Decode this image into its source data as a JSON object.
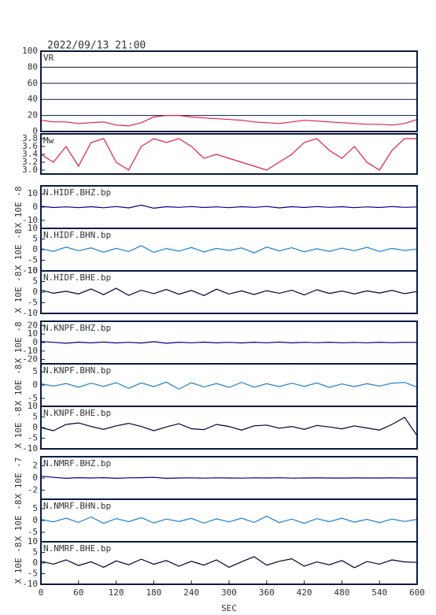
{
  "chart_data": [
    {
      "type": "line",
      "title": "2022/09/13 21:00",
      "grid": true,
      "xlim": [
        0,
        600
      ],
      "ylim": [
        0,
        100
      ],
      "yticks": [
        0,
        20,
        40,
        60,
        80,
        100
      ],
      "x": [
        0,
        20,
        40,
        60,
        80,
        100,
        120,
        140,
        160,
        180,
        200,
        220,
        240,
        260,
        280,
        300,
        320,
        340,
        360,
        380,
        400,
        420,
        440,
        460,
        480,
        500,
        520,
        540,
        560,
        580,
        600
      ],
      "series": [
        {
          "name": "VR",
          "color": "#e0204a",
          "values": [
            14,
            12,
            12,
            10,
            11,
            12,
            8,
            7,
            11,
            18,
            20,
            20,
            18,
            17,
            16,
            15,
            14,
            12,
            11,
            10,
            12,
            14,
            13,
            12,
            11,
            10,
            9,
            9,
            8,
            10,
            15
          ]
        }
      ]
    },
    {
      "type": "line",
      "grid": false,
      "xlim": [
        0,
        600
      ],
      "ylim": [
        2.9,
        3.92
      ],
      "yticks": [
        {
          "value": 3,
          "label": "3.0"
        },
        3.2,
        3.4,
        3.6,
        3.8
      ],
      "x": [
        0,
        20,
        40,
        60,
        80,
        100,
        120,
        140,
        160,
        180,
        200,
        220,
        240,
        260,
        280,
        300,
        320,
        340,
        360,
        380,
        400,
        420,
        440,
        460,
        480,
        500,
        520,
        540,
        560,
        580,
        600
      ],
      "series": [
        {
          "name": "Mw",
          "color": "#e0204a",
          "values": [
            3.4,
            3.2,
            3.6,
            3.1,
            3.7,
            3.8,
            3.2,
            3.0,
            3.6,
            3.8,
            3.7,
            3.8,
            3.6,
            3.3,
            3.4,
            3.3,
            3.2,
            3.1,
            3.0,
            3.2,
            3.4,
            3.7,
            3.8,
            3.5,
            3.3,
            3.6,
            3.2,
            3.0,
            3.5,
            3.8,
            3.8
          ]
        }
      ]
    },
    {
      "type": "line",
      "ylabel": "X 10E -8",
      "xlim": [
        0,
        600
      ],
      "ylim": [
        -16,
        16
      ],
      "yticks": [
        -10,
        0,
        10
      ],
      "x": [
        0,
        20,
        40,
        60,
        80,
        100,
        120,
        140,
        160,
        180,
        200,
        220,
        240,
        260,
        280,
        300,
        320,
        340,
        360,
        380,
        400,
        420,
        440,
        460,
        480,
        500,
        520,
        540,
        560,
        580,
        600
      ],
      "series": [
        {
          "name": "N.HIDF.BHZ.bp",
          "color": "#00008b",
          "values": [
            0.6,
            -0.3,
            0.2,
            -0.4,
            0.3,
            -0.5,
            0.4,
            -0.6,
            1.5,
            -0.8,
            0.3,
            -0.2,
            0.4,
            -0.3,
            0.2,
            -0.4,
            0.3,
            -0.2,
            0.5,
            -0.6,
            0.3,
            -0.3,
            0.4,
            -0.2,
            0.3,
            -0.4,
            0.2,
            -0.3,
            0.4,
            -0.2,
            0.1
          ]
        }
      ]
    },
    {
      "type": "line",
      "ylabel": "X 10E -8",
      "xlim": [
        0,
        600
      ],
      "ylim": [
        -10,
        10
      ],
      "yticks": [
        -10,
        -5,
        0,
        5,
        10
      ],
      "x": [
        0,
        20,
        40,
        60,
        80,
        100,
        120,
        140,
        160,
        180,
        200,
        220,
        240,
        260,
        280,
        300,
        320,
        340,
        360,
        380,
        400,
        420,
        440,
        460,
        480,
        500,
        520,
        540,
        560,
        580,
        600
      ],
      "series": [
        {
          "name": "N.HIDF.BHN.bp",
          "color": "#1e7fd0",
          "values": [
            0.5,
            -0.8,
            1.2,
            -0.5,
            0.8,
            -1.2,
            0.6,
            -0.9,
            1.8,
            -1.3,
            0.5,
            -0.7,
            1.0,
            -1.1,
            0.6,
            -0.4,
            0.8,
            -1.5,
            1.2,
            -0.6,
            0.9,
            -1.0,
            0.4,
            -0.8,
            0.7,
            -0.5,
            1.1,
            -0.9,
            0.6,
            -0.4,
            0.3
          ]
        }
      ]
    },
    {
      "type": "line",
      "ylabel": "X 10E -8",
      "xlim": [
        0,
        600
      ],
      "ylim": [
        -10,
        10
      ],
      "yticks": [
        -10,
        -5,
        0,
        5,
        10
      ],
      "x": [
        0,
        20,
        40,
        60,
        80,
        100,
        120,
        140,
        160,
        180,
        200,
        220,
        240,
        260,
        280,
        300,
        320,
        340,
        360,
        380,
        400,
        420,
        440,
        460,
        480,
        500,
        520,
        540,
        560,
        580,
        600
      ],
      "series": [
        {
          "name": "N.HIDF.BHE.bp",
          "color": "#000033",
          "values": [
            1.0,
            -0.5,
            0.4,
            -0.8,
            1.5,
            -1.2,
            1.8,
            -1.5,
            0.9,
            -0.7,
            1.3,
            -1.0,
            0.8,
            -1.6,
            1.4,
            -0.9,
            0.6,
            -1.1,
            0.7,
            -0.5,
            0.9,
            -1.3,
            1.1,
            -0.6,
            0.5,
            -0.8,
            0.6,
            -0.4,
            0.8,
            -0.7,
            0.3
          ]
        }
      ]
    },
    {
      "type": "line",
      "ylabel": "X 10E -8",
      "xlim": [
        0,
        600
      ],
      "ylim": [
        -25,
        25
      ],
      "yticks": [
        -20,
        -10,
        0,
        10,
        20
      ],
      "x": [
        0,
        20,
        40,
        60,
        80,
        100,
        120,
        140,
        160,
        180,
        200,
        220,
        240,
        260,
        280,
        300,
        320,
        340,
        360,
        380,
        400,
        420,
        440,
        460,
        480,
        500,
        520,
        540,
        560,
        580,
        600
      ],
      "series": [
        {
          "name": "N.KNPF.BHZ.bp",
          "color": "#00008b",
          "values": [
            1.2,
            0.3,
            -0.8,
            0.5,
            -0.4,
            0.6,
            -0.5,
            0.3,
            -0.6,
            1.0,
            -0.8,
            0.4,
            -0.3,
            0.5,
            -0.4,
            0.3,
            -0.5,
            0.4,
            -0.3,
            0.6,
            -0.4,
            0.3,
            -0.2,
            0.4,
            -0.3,
            0.2,
            -0.3,
            0.4,
            -0.2,
            0.3,
            0.1
          ]
        }
      ]
    },
    {
      "type": "line",
      "ylabel": "X 10E -8",
      "xlim": [
        0,
        600
      ],
      "ylim": [
        -8,
        8
      ],
      "yticks": [
        -5,
        0,
        5
      ],
      "x": [
        0,
        20,
        40,
        60,
        80,
        100,
        120,
        140,
        160,
        180,
        200,
        220,
        240,
        260,
        280,
        300,
        320,
        340,
        360,
        380,
        400,
        420,
        440,
        460,
        480,
        500,
        520,
        540,
        560,
        580,
        600
      ],
      "series": [
        {
          "name": "N.KNPF.BHN.bp",
          "color": "#1e7fd0",
          "values": [
            0.5,
            -0.4,
            0.6,
            -0.8,
            0.7,
            -0.5,
            0.9,
            -1.2,
            0.8,
            -0.6,
            1.1,
            -1.5,
            0.9,
            -0.7,
            0.6,
            -0.9,
            1.0,
            -0.8,
            0.5,
            -0.6,
            0.7,
            -0.5,
            0.8,
            -0.9,
            0.4,
            -0.6,
            0.5,
            -0.4,
            0.7,
            1.0,
            -0.8
          ]
        }
      ]
    },
    {
      "type": "line",
      "ylabel": "X 10E -8",
      "xlim": [
        0,
        600
      ],
      "ylim": [
        -10,
        10
      ],
      "yticks": [
        -10,
        -5,
        0,
        5,
        10
      ],
      "x": [
        0,
        20,
        40,
        60,
        80,
        100,
        120,
        140,
        160,
        180,
        200,
        220,
        240,
        260,
        280,
        300,
        320,
        340,
        360,
        380,
        400,
        420,
        440,
        460,
        480,
        500,
        520,
        540,
        560,
        580,
        600
      ],
      "series": [
        {
          "name": "N.KNPF.BHE.bp",
          "color": "#000033",
          "values": [
            0,
            -1.5,
            1.5,
            2.2,
            0.5,
            -0.8,
            0.8,
            2.0,
            0.5,
            -1.5,
            0.3,
            1.8,
            -0.5,
            -1.0,
            1.5,
            0.5,
            -1.2,
            0.8,
            1.2,
            -0.3,
            0.5,
            -0.8,
            1.0,
            0.3,
            -0.6,
            0.8,
            -0.2,
            -1.2,
            1.5,
            4.8,
            -3.8
          ]
        }
      ]
    },
    {
      "type": "line",
      "ylabel": "X 10E -7",
      "xlim": [
        0,
        600
      ],
      "ylim": [
        -3.5,
        3.5
      ],
      "yticks": [
        -2,
        0,
        2
      ],
      "x": [
        0,
        20,
        40,
        60,
        80,
        100,
        120,
        140,
        160,
        180,
        200,
        220,
        240,
        260,
        280,
        300,
        320,
        340,
        360,
        380,
        400,
        420,
        440,
        460,
        480,
        500,
        520,
        540,
        560,
        580,
        600
      ],
      "series": [
        {
          "name": "N.NMRF.BHZ.bp",
          "color": "#00008b",
          "values": [
            0.3,
            0.1,
            -0.05,
            0.05,
            0,
            0.05,
            -0.05,
            0.02,
            0.05,
            0.1,
            -0.05,
            0,
            0.02,
            -0.02,
            0.03,
            0,
            -0.02,
            0.02,
            0,
            0.04,
            -0.02,
            0,
            0.01,
            0,
            -0.01,
            0.01,
            0,
            0,
            0.01,
            0,
            0
          ]
        }
      ]
    },
    {
      "type": "line",
      "ylabel": "X 10E -8",
      "xlim": [
        0,
        600
      ],
      "ylim": [
        -9,
        9
      ],
      "yticks": [
        -5,
        0,
        5
      ],
      "x": [
        0,
        20,
        40,
        60,
        80,
        100,
        120,
        140,
        160,
        180,
        200,
        220,
        240,
        260,
        280,
        300,
        320,
        340,
        360,
        380,
        400,
        420,
        440,
        460,
        480,
        500,
        520,
        540,
        560,
        580,
        600
      ],
      "series": [
        {
          "name": "N.NMRF.BHN.bp",
          "color": "#1e7fd0",
          "values": [
            0.5,
            -0.6,
            1.0,
            -0.8,
            1.5,
            -1.2,
            0.8,
            -0.5,
            1.2,
            -1.0,
            0.6,
            -0.4,
            0.9,
            -1.1,
            0.7,
            -0.6,
            1.0,
            -0.8,
            1.8,
            -0.9,
            0.6,
            -1.2,
            0.8,
            -0.5,
            1.0,
            -0.7,
            0.5,
            -0.9,
            0.6,
            -0.4,
            0.5
          ]
        }
      ]
    },
    {
      "type": "line",
      "ylabel": "X 10E -8",
      "xlabel": "SEC",
      "xlim": [
        0,
        600
      ],
      "xticks": [
        0,
        60,
        120,
        180,
        240,
        300,
        360,
        420,
        480,
        540,
        600
      ],
      "ylim": [
        -10,
        10
      ],
      "yticks": [
        -10,
        -5,
        0,
        5,
        10
      ],
      "x": [
        0,
        20,
        40,
        60,
        80,
        100,
        120,
        140,
        160,
        180,
        200,
        220,
        240,
        260,
        280,
        300,
        320,
        340,
        360,
        380,
        400,
        420,
        440,
        460,
        480,
        500,
        520,
        540,
        560,
        580,
        600
      ],
      "series": [
        {
          "name": "N.NMRF.BHE.bp",
          "color": "#000033",
          "values": [
            0.8,
            -0.5,
            1.5,
            -1.2,
            0.6,
            -2.0,
            1.0,
            -0.8,
            1.8,
            -0.6,
            1.2,
            -1.5,
            0.8,
            -1.0,
            1.5,
            -2.0,
            0.6,
            3.0,
            -1.0,
            0.8,
            2.0,
            -1.5,
            0.5,
            -0.8,
            1.2,
            -2.2,
            0.7,
            -0.5,
            1.5,
            0.5,
            0.3
          ]
        }
      ]
    }
  ]
}
